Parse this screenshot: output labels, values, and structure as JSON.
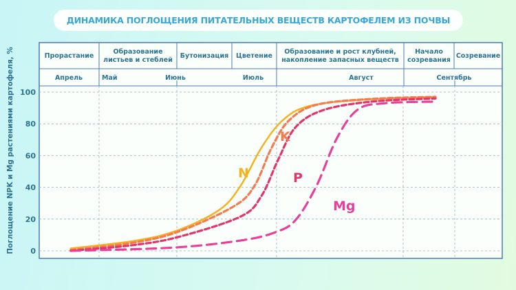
{
  "title": "ДИНАМИКА ПОГЛОЩЕНИЯ ПИТАТЕЛЬНЫХ ВЕЩЕСТВ КАРТОФЕЛЕМ ИЗ ПОЧВЫ",
  "chart_data": {
    "type": "line",
    "title": "ДИНАМИКА ПОГЛОЩЕНИЯ ПИТАТЕЛЬНЫХ ВЕЩЕСТВ КАРТОФЕЛЕМ ИЗ ПОЧВЫ",
    "ylabel": "Поглощение NPK и Mg растениями картофеля, %",
    "ylim": [
      0,
      100
    ],
    "yticks": [
      "0",
      "20",
      "40",
      "60",
      "80",
      "100"
    ],
    "xlim": [
      0,
      100
    ],
    "grid": true,
    "phases": [
      "Прорастание",
      "Образование листьев и стеблей",
      "Бутонизация",
      "Цветение",
      "Образование и рост клубней, накопление запасных веществ",
      "Начало созревания",
      "Созревание"
    ],
    "months": [
      "Апрель",
      "Май",
      "Июнь",
      "Июль",
      "Август",
      "Сентябрь"
    ],
    "series": [
      {
        "name": "N",
        "color": "#f5b120",
        "style": "solid",
        "x": [
          6.8,
          21,
          30,
          39,
          43.5,
          48,
          52.5,
          58,
          69,
          85.6
        ],
        "y": [
          1.5,
          6.5,
          13,
          26,
          41,
          65,
          82,
          91,
          95,
          97
        ]
      },
      {
        "name": "K",
        "color": "#f47a50",
        "style": "dashed",
        "x": [
          6.8,
          20,
          30,
          42,
          46.5,
          50.2,
          53.9,
          59.9,
          71.8,
          85.6
        ],
        "y": [
          0.5,
          5,
          12,
          28,
          41,
          65,
          82,
          92,
          95.7,
          97
        ]
      },
      {
        "name": "P",
        "color": "#e0366a",
        "style": "dashed",
        "x": [
          6.8,
          20,
          30,
          43.5,
          48,
          51.7,
          55.4,
          61.4,
          71.8,
          85.6
        ],
        "y": [
          0,
          3.5,
          8.7,
          21.6,
          34.6,
          58,
          78,
          88.7,
          94,
          96
        ]
      },
      {
        "name": "Mg",
        "color": "#e8409a",
        "style": "longdash",
        "x": [
          6.8,
          28.7,
          43.5,
          51,
          55.4,
          59.9,
          64.3,
          68.8,
          74.7,
          85.6
        ],
        "y": [
          0,
          2,
          6.5,
          11.7,
          19.5,
          41,
          71,
          89,
          93,
          94
        ]
      }
    ]
  }
}
